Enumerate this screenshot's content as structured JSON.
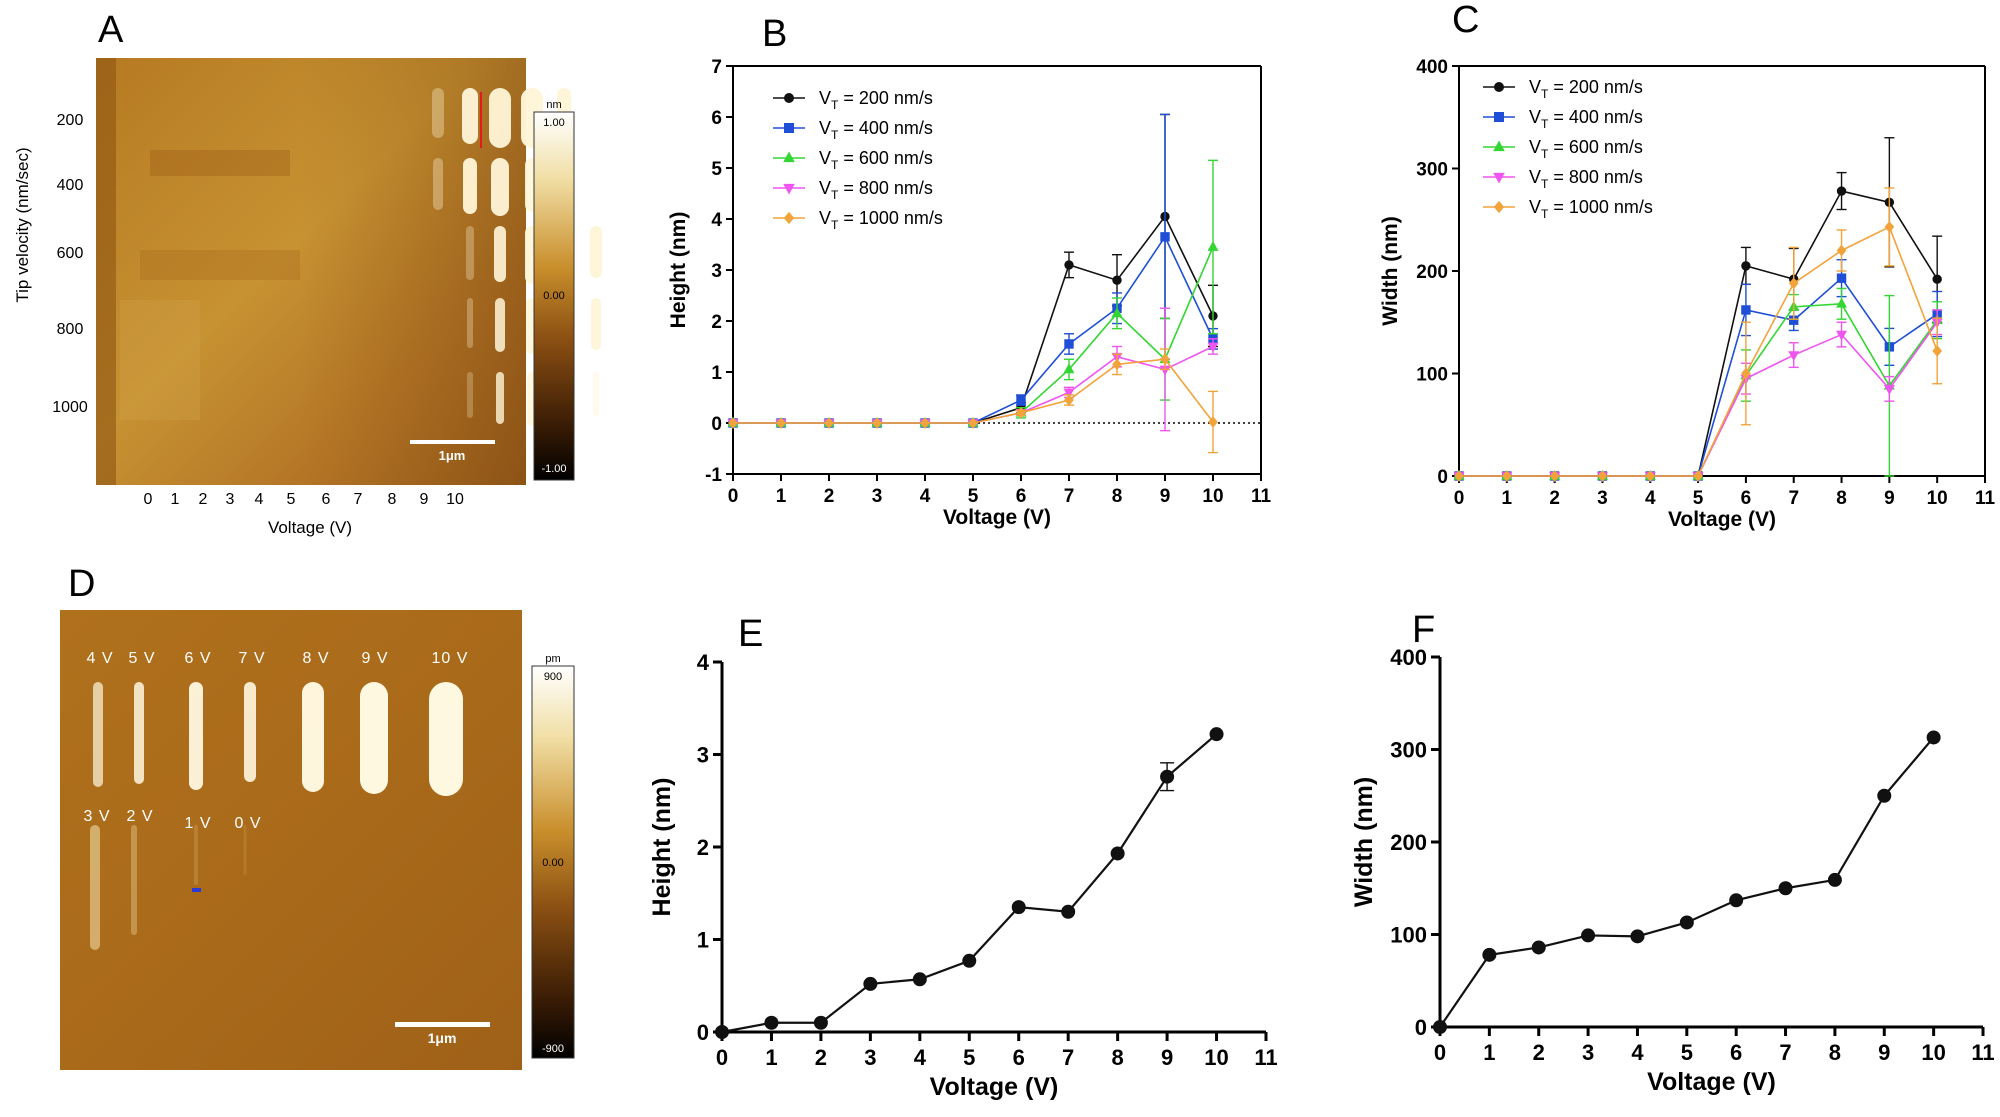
{
  "colors": {
    "vt200": "#111111",
    "vt400": "#1f4fd6",
    "vt600": "#33d633",
    "vt800": "#ef55ef",
    "vt1000": "#f2a33a",
    "afm_light": "#f4e7b8",
    "afm_mid": "#a86a1a",
    "afm_dark": "#1a0e04"
  },
  "panel_labels": {
    "a": "A",
    "b": "B",
    "c": "C",
    "d": "D",
    "e": "E",
    "f": "F"
  },
  "afm_a": {
    "ylabel": "Tip velocity (nm/sec)",
    "xlabel": "Voltage (V)",
    "row_labels": [
      "200",
      "400",
      "600",
      "800",
      "1000"
    ],
    "col_labels": [
      "0",
      "1",
      "2",
      "3",
      "4",
      "5",
      "6",
      "7",
      "8",
      "9",
      "10"
    ],
    "colorbar_unit": "nm",
    "colorbar_ticks": [
      "1.00",
      "0.00",
      "-1.00"
    ],
    "scalebar_label": "1μm"
  },
  "afm_d": {
    "top_row_labels": [
      "4 V",
      "5 V",
      "6 V",
      "7 V",
      "8 V",
      "9 V",
      "10 V"
    ],
    "bottom_row_labels": [
      "3 V",
      "2 V",
      "1 V",
      "0 V"
    ],
    "colorbar_unit": "pm",
    "colorbar_ticks": [
      "900",
      "0.00",
      "-900"
    ],
    "scalebar_label": "1μm"
  },
  "chart_data": [
    {
      "panel": "B",
      "type": "line",
      "xlabel": "Voltage (V)",
      "ylabel": "Height (nm)",
      "xlim": [
        0,
        11
      ],
      "ylim": [
        -1,
        7
      ],
      "x": [
        0,
        1,
        2,
        3,
        4,
        5,
        6,
        7,
        8,
        9,
        10
      ],
      "xticks": [
        0,
        1,
        2,
        3,
        4,
        5,
        6,
        7,
        8,
        9,
        10,
        11
      ],
      "yticks": [
        -1,
        0,
        1,
        2,
        3,
        4,
        5,
        6,
        7
      ],
      "reference_line_y": 0,
      "legend_position": "top-left",
      "series": [
        {
          "name": "V_T = 200 nm/s",
          "legend_prefix": "V",
          "legend_sub": "T",
          "legend_suffix": " = 200 nm/s",
          "color_key": "vt200",
          "marker": "circle",
          "values": [
            0,
            0,
            0,
            0,
            0,
            0,
            0.3,
            3.1,
            2.8,
            4.05,
            2.1
          ],
          "errors": [
            0,
            0,
            0,
            0,
            0,
            0,
            0.1,
            0.25,
            0.5,
            2.0,
            0.6
          ]
        },
        {
          "name": "V_T = 400 nm/s",
          "legend_prefix": "V",
          "legend_sub": "T",
          "legend_suffix": " = 400 nm/s",
          "color_key": "vt400",
          "marker": "square",
          "values": [
            0,
            0,
            0,
            0,
            0,
            0,
            0.45,
            1.55,
            2.25,
            3.65,
            1.65
          ],
          "errors": [
            0,
            0,
            0,
            0,
            0,
            0,
            0.1,
            0.2,
            0.3,
            2.4,
            0.2
          ]
        },
        {
          "name": "V_T = 600 nm/s",
          "legend_prefix": "V",
          "legend_sub": "T",
          "legend_suffix": " = 600 nm/s",
          "color_key": "vt600",
          "marker": "triangle-up",
          "values": [
            0,
            0,
            0,
            0,
            0,
            0,
            0.2,
            1.05,
            2.15,
            1.25,
            3.45
          ],
          "errors": [
            0,
            0,
            0,
            0,
            0,
            0,
            0.1,
            0.2,
            0.3,
            0.8,
            1.7
          ]
        },
        {
          "name": "V_T = 800 nm/s",
          "legend_prefix": "V",
          "legend_sub": "T",
          "legend_suffix": " = 800 nm/s",
          "color_key": "vt800",
          "marker": "triangle-down",
          "values": [
            0,
            0,
            0,
            0,
            0,
            0,
            0.2,
            0.6,
            1.3,
            1.05,
            1.5
          ],
          "errors": [
            0,
            0,
            0,
            0,
            0,
            0,
            0.05,
            0.1,
            0.2,
            1.2,
            0.15
          ]
        },
        {
          "name": "V_T = 1000 nm/s",
          "legend_prefix": "V",
          "legend_sub": "T",
          "legend_suffix": " = 1000 nm/s",
          "color_key": "vt1000",
          "marker": "diamond",
          "values": [
            0,
            0,
            0,
            0,
            0,
            0,
            0.2,
            0.45,
            1.15,
            1.25,
            0.02
          ],
          "errors": [
            0,
            0,
            0,
            0,
            0,
            0,
            0.05,
            0.1,
            0.2,
            0.2,
            0.6
          ]
        }
      ]
    },
    {
      "panel": "C",
      "type": "line",
      "xlabel": "Voltage (V)",
      "ylabel": "Width (nm)",
      "xlim": [
        0,
        11
      ],
      "ylim": [
        0,
        400
      ],
      "x": [
        0,
        1,
        2,
        3,
        4,
        5,
        6,
        7,
        8,
        9,
        10
      ],
      "xticks": [
        0,
        1,
        2,
        3,
        4,
        5,
        6,
        7,
        8,
        9,
        10,
        11
      ],
      "yticks": [
        0,
        100,
        200,
        300,
        400
      ],
      "legend_position": "top-left",
      "series": [
        {
          "name": "V_T = 200 nm/s",
          "legend_prefix": "V",
          "legend_sub": "T",
          "legend_suffix": " = 200 nm/s",
          "color_key": "vt200",
          "marker": "circle",
          "values": [
            0,
            0,
            0,
            0,
            0,
            0,
            205,
            192,
            278,
            267,
            192
          ],
          "errors": [
            0,
            0,
            0,
            0,
            0,
            0,
            18,
            30,
            18,
            63,
            42
          ]
        },
        {
          "name": "V_T = 400 nm/s",
          "legend_prefix": "V",
          "legend_sub": "T",
          "legend_suffix": " = 400 nm/s",
          "color_key": "vt400",
          "marker": "square",
          "values": [
            0,
            0,
            0,
            0,
            0,
            0,
            162,
            152,
            193,
            126,
            158
          ],
          "errors": [
            0,
            0,
            0,
            0,
            0,
            0,
            25,
            10,
            18,
            18,
            22
          ]
        },
        {
          "name": "V_T = 600 nm/s",
          "legend_prefix": "V",
          "legend_sub": "T",
          "legend_suffix": " = 600 nm/s",
          "color_key": "vt600",
          "marker": "triangle-up",
          "values": [
            0,
            0,
            0,
            0,
            0,
            0,
            98,
            165,
            168,
            88,
            152
          ],
          "errors": [
            0,
            0,
            0,
            0,
            0,
            0,
            25,
            12,
            15,
            88,
            18
          ]
        },
        {
          "name": "V_T = 800 nm/s",
          "legend_prefix": "V",
          "legend_sub": "T",
          "legend_suffix": " = 800 nm/s",
          "color_key": "vt800",
          "marker": "triangle-down",
          "values": [
            0,
            0,
            0,
            0,
            0,
            0,
            95,
            118,
            138,
            85,
            150
          ],
          "errors": [
            0,
            0,
            0,
            0,
            0,
            0,
            15,
            12,
            12,
            12,
            12
          ]
        },
        {
          "name": "V_T = 1000 nm/s",
          "legend_prefix": "V",
          "legend_sub": "T",
          "legend_suffix": " = 1000 nm/s",
          "color_key": "vt1000",
          "marker": "diamond",
          "values": [
            0,
            0,
            0,
            0,
            0,
            0,
            100,
            188,
            220,
            243,
            122
          ],
          "errors": [
            0,
            0,
            0,
            0,
            0,
            0,
            50,
            35,
            20,
            38,
            32
          ]
        }
      ]
    },
    {
      "panel": "E",
      "type": "line",
      "xlabel": "Voltage (V)",
      "ylabel": "Height (nm)",
      "xlim": [
        0,
        11
      ],
      "ylim": [
        0,
        4
      ],
      "x": [
        0,
        1,
        2,
        3,
        4,
        5,
        6,
        7,
        8,
        9,
        10
      ],
      "xticks": [
        0,
        1,
        2,
        3,
        4,
        5,
        6,
        7,
        8,
        9,
        10,
        11
      ],
      "yticks": [
        0,
        1,
        2,
        3,
        4
      ],
      "series": [
        {
          "name": "Height",
          "color_key": "vt200",
          "marker": "circle",
          "values": [
            0,
            0.1,
            0.1,
            0.52,
            0.57,
            0.77,
            1.35,
            1.3,
            1.93,
            2.76,
            3.22
          ],
          "errors": [
            0,
            0,
            0,
            0,
            0,
            0,
            0,
            0,
            0,
            0.15,
            0
          ]
        }
      ]
    },
    {
      "panel": "F",
      "type": "line",
      "xlabel": "Voltage (V)",
      "ylabel": "Width (nm)",
      "xlim": [
        0,
        11
      ],
      "ylim": [
        0,
        400
      ],
      "x": [
        0,
        1,
        2,
        3,
        4,
        5,
        6,
        7,
        8,
        9,
        10
      ],
      "xticks": [
        0,
        1,
        2,
        3,
        4,
        5,
        6,
        7,
        8,
        9,
        10,
        11
      ],
      "yticks": [
        0,
        100,
        200,
        300,
        400
      ],
      "series": [
        {
          "name": "Width",
          "color_key": "vt200",
          "marker": "circle",
          "values": [
            0,
            78,
            86,
            99,
            98,
            113,
            137,
            150,
            159,
            250,
            313
          ],
          "errors": [
            0,
            0,
            0,
            0,
            0,
            0,
            0,
            0,
            0,
            0,
            0
          ]
        }
      ]
    }
  ]
}
